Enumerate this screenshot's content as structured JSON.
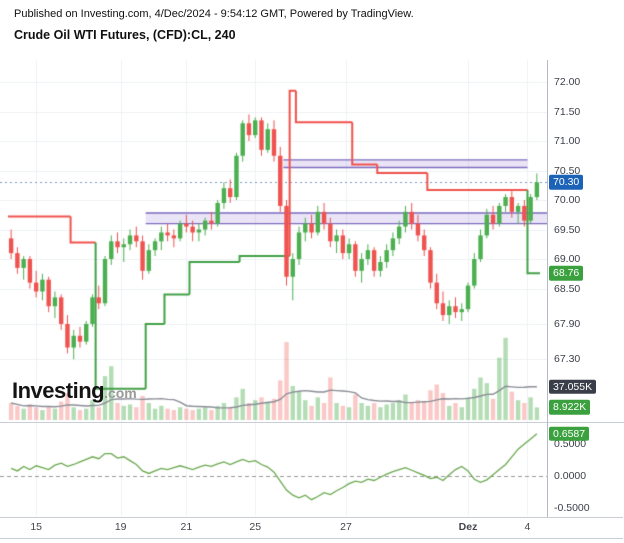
{
  "header": {
    "published_line": "Published on Investing.com, 4/Dec/2024 - 9:54:12 GMT, Powered by TradingView.",
    "title": "Crude Oil WTI Futures, (CFD):CL, 240"
  },
  "watermark": {
    "brand": "Investing",
    "suffix": ".com"
  },
  "colors": {
    "up": "#4caf50",
    "down": "#ef5350",
    "volUp": "rgba(76,175,80,0.42)",
    "volDown": "rgba(239,83,80,0.32)",
    "stUp": "#43a047",
    "stDown": "#f0524d",
    "osc": "#6aa84f",
    "zoneFill": "rgba(116,88,196,0.16)",
    "zoneBorder": "#7e6bbf",
    "priceLine": "#7d97c9",
    "grid": "#eef0f4",
    "volMA": "#8a8d96",
    "zeroLine": "#999999",
    "badgeLast": "#1c62b7",
    "badgeGreen": "#3ba13e",
    "badgeDark": "#3a3e48"
  },
  "chart_data": [
    {
      "type": "candlestick",
      "title": "Crude Oil WTI Futures, (CFD):CL, 240",
      "timeframe_minutes": 240,
      "ylim": [
        66.238,
        72.373
      ],
      "y_ticks": [
        72.0,
        71.5,
        71.0,
        70.5,
        70.0,
        69.5,
        69.0,
        68.5,
        67.9,
        67.3
      ],
      "x_labels": [
        {
          "label": "15",
          "index": 4
        },
        {
          "label": "19",
          "index": 17.5
        },
        {
          "label": "21",
          "index": 28
        },
        {
          "label": "25",
          "index": 39
        },
        {
          "label": "27",
          "index": 53.5
        },
        {
          "label": "Dez",
          "index": 73,
          "bold": true
        },
        {
          "label": "4",
          "index": 82.5
        }
      ],
      "last_price": 70.3,
      "badges": {
        "last_price": "70.30",
        "supertrend": "68.76"
      },
      "candles": [
        [
          69.35,
          69.5,
          69.0,
          69.1
        ],
        [
          69.1,
          69.2,
          68.75,
          68.85
        ],
        [
          68.85,
          69.05,
          68.65,
          69.0
        ],
        [
          69.0,
          69.05,
          68.5,
          68.6
        ],
        [
          68.6,
          68.8,
          68.35,
          68.45
        ],
        [
          68.45,
          68.75,
          68.3,
          68.65
        ],
        [
          68.65,
          68.7,
          68.1,
          68.2
        ],
        [
          68.2,
          68.45,
          68.0,
          68.35
        ],
        [
          68.35,
          68.4,
          67.8,
          67.9
        ],
        [
          67.9,
          68.05,
          67.4,
          67.5
        ],
        [
          67.5,
          67.8,
          67.3,
          67.7
        ],
        [
          67.7,
          67.85,
          67.5,
          67.6
        ],
        [
          67.6,
          67.95,
          67.55,
          67.9
        ],
        [
          67.9,
          68.4,
          67.85,
          68.35
        ],
        [
          68.35,
          68.55,
          68.15,
          68.25
        ],
        [
          68.25,
          69.05,
          68.2,
          69.0
        ],
        [
          69.0,
          69.4,
          68.9,
          69.3
        ],
        [
          69.3,
          69.45,
          69.1,
          69.2
        ],
        [
          69.2,
          69.35,
          68.95,
          69.25
        ],
        [
          69.25,
          69.5,
          69.15,
          69.4
        ],
        [
          69.4,
          69.55,
          69.2,
          69.3
        ],
        [
          69.3,
          69.4,
          68.65,
          68.8
        ],
        [
          68.8,
          69.25,
          68.75,
          69.15
        ],
        [
          69.15,
          69.35,
          69.05,
          69.3
        ],
        [
          69.3,
          69.55,
          69.15,
          69.45
        ],
        [
          69.45,
          69.6,
          69.3,
          69.4
        ],
        [
          69.4,
          69.5,
          69.2,
          69.35
        ],
        [
          69.35,
          69.65,
          69.3,
          69.6
        ],
        [
          69.6,
          69.75,
          69.45,
          69.55
        ],
        [
          69.55,
          69.65,
          69.3,
          69.45
        ],
        [
          69.45,
          69.6,
          69.3,
          69.5
        ],
        [
          69.5,
          69.7,
          69.4,
          69.65
        ],
        [
          69.65,
          69.8,
          69.5,
          69.6
        ],
        [
          69.6,
          70.0,
          69.55,
          69.95
        ],
        [
          69.95,
          70.3,
          69.85,
          70.2
        ],
        [
          70.2,
          70.35,
          69.95,
          70.05
        ],
        [
          70.05,
          70.8,
          70.0,
          70.75
        ],
        [
          70.75,
          71.35,
          70.65,
          71.3
        ],
        [
          71.3,
          71.45,
          71.0,
          71.1
        ],
        [
          71.1,
          71.4,
          71.05,
          71.35
        ],
        [
          71.35,
          71.4,
          70.75,
          70.85
        ],
        [
          70.85,
          71.3,
          70.8,
          71.2
        ],
        [
          71.2,
          71.35,
          70.65,
          70.75
        ],
        [
          70.75,
          70.9,
          69.8,
          69.9
        ],
        [
          69.9,
          70.0,
          68.55,
          68.7
        ],
        [
          68.7,
          69.1,
          68.3,
          69.0
        ],
        [
          69.0,
          69.55,
          68.9,
          69.45
        ],
        [
          69.45,
          69.7,
          69.3,
          69.6
        ],
        [
          69.6,
          69.75,
          69.35,
          69.45
        ],
        [
          69.45,
          69.9,
          69.4,
          69.8
        ],
        [
          69.8,
          69.95,
          69.5,
          69.6
        ],
        [
          69.6,
          69.7,
          69.2,
          69.3
        ],
        [
          69.3,
          69.5,
          69.1,
          69.4
        ],
        [
          69.4,
          69.5,
          69.0,
          69.1
        ],
        [
          69.1,
          69.35,
          69.0,
          69.25
        ],
        [
          69.25,
          69.3,
          68.7,
          68.8
        ],
        [
          68.8,
          69.1,
          68.6,
          69.0
        ],
        [
          69.0,
          69.25,
          68.9,
          69.15
        ],
        [
          69.15,
          69.2,
          68.7,
          68.8
        ],
        [
          68.8,
          69.05,
          68.7,
          68.95
        ],
        [
          68.95,
          69.25,
          68.85,
          69.15
        ],
        [
          69.15,
          69.45,
          69.05,
          69.35
        ],
        [
          69.35,
          69.65,
          69.25,
          69.55
        ],
        [
          69.55,
          69.9,
          69.45,
          69.8
        ],
        [
          69.8,
          69.95,
          69.5,
          69.6
        ],
        [
          69.6,
          69.75,
          69.3,
          69.4
        ],
        [
          69.4,
          69.5,
          69.05,
          69.15
        ],
        [
          69.15,
          69.2,
          68.5,
          68.6
        ],
        [
          68.6,
          68.75,
          68.15,
          68.25
        ],
        [
          68.25,
          68.45,
          67.95,
          68.05
        ],
        [
          68.05,
          68.3,
          67.9,
          68.2
        ],
        [
          68.2,
          68.35,
          68.0,
          68.1
        ],
        [
          68.1,
          68.25,
          67.95,
          68.15
        ],
        [
          68.15,
          68.6,
          68.1,
          68.55
        ],
        [
          68.55,
          69.1,
          68.5,
          69.0
        ],
        [
          69.0,
          69.5,
          68.95,
          69.4
        ],
        [
          69.4,
          69.85,
          69.35,
          69.75
        ],
        [
          69.75,
          69.9,
          69.5,
          69.6
        ],
        [
          69.6,
          69.95,
          69.55,
          69.9
        ],
        [
          69.9,
          70.1,
          69.8,
          70.05
        ],
        [
          70.05,
          70.15,
          69.7,
          69.8
        ],
        [
          69.8,
          69.95,
          69.6,
          69.9
        ],
        [
          69.9,
          70.0,
          69.55,
          69.65
        ],
        [
          69.65,
          70.1,
          69.6,
          70.05
        ],
        [
          70.05,
          70.45,
          70.0,
          70.3
        ]
      ],
      "supertrend": {
        "current_value": 68.76,
        "segments": [
          {
            "from": 0,
            "to": 9,
            "value": 69.72,
            "trend": "down"
          },
          {
            "from": 10,
            "to": 13,
            "value": 69.28,
            "trend": "down"
          },
          {
            "from": 14,
            "to": 21,
            "value": 66.8,
            "trend": "up"
          },
          {
            "from": 22,
            "to": 24,
            "value": 67.9,
            "trend": "up"
          },
          {
            "from": 25,
            "to": 28,
            "value": 68.4,
            "trend": "up"
          },
          {
            "from": 29,
            "to": 36,
            "value": 68.95,
            "trend": "up"
          },
          {
            "from": 37,
            "to": 44,
            "value": 69.05,
            "trend": "up"
          },
          {
            "from": 45,
            "to": 45,
            "value": 71.85,
            "trend": "down"
          },
          {
            "from": 46,
            "to": 54,
            "value": 71.32,
            "trend": "down"
          },
          {
            "from": 55,
            "to": 58,
            "value": 70.6,
            "trend": "down"
          },
          {
            "from": 59,
            "to": 66,
            "value": 70.46,
            "trend": "down"
          },
          {
            "from": 67,
            "to": 82,
            "value": 70.17,
            "trend": "down"
          },
          {
            "from": 83,
            "to": 84,
            "value": 68.76,
            "trend": "up"
          }
        ]
      },
      "zones": [
        {
          "from": 44,
          "to": 82,
          "top": 70.68,
          "bottom": 70.55
        },
        {
          "from": 22,
          "to": 999,
          "top": 69.78,
          "bottom": 69.6
        }
      ]
    },
    {
      "type": "bar",
      "name": "volume",
      "unit": "K",
      "ylim": [
        0,
        60
      ],
      "last_label": "8.922K",
      "ma_label": "37.055K",
      "values": [
        12,
        10,
        8,
        11,
        9,
        7,
        10,
        8,
        13,
        19,
        9,
        7,
        8,
        14,
        9,
        31,
        38,
        12,
        10,
        11,
        9,
        17,
        12,
        8,
        10,
        8,
        7,
        9,
        8,
        7,
        8,
        9,
        7,
        10,
        12,
        9,
        16,
        22,
        12,
        14,
        16,
        13,
        15,
        28,
        55,
        24,
        20,
        14,
        10,
        16,
        12,
        30,
        12,
        10,
        9,
        18,
        12,
        10,
        12,
        9,
        11,
        12,
        14,
        18,
        12,
        14,
        13,
        21,
        25,
        19,
        10,
        12,
        9,
        16,
        22,
        30,
        26,
        15,
        44,
        58,
        20,
        14,
        12,
        16,
        8.922
      ]
    },
    {
      "type": "line",
      "name": "oscillator",
      "ylim": [
        -0.625,
        0.844
      ],
      "y_ticks": [
        0.5,
        0.0,
        -0.5
      ],
      "last_label": "0.6587",
      "values": [
        0.12,
        0.08,
        0.15,
        0.1,
        0.16,
        0.13,
        0.1,
        0.17,
        0.2,
        0.15,
        0.18,
        0.22,
        0.26,
        0.3,
        0.27,
        0.35,
        0.35,
        0.28,
        0.3,
        0.24,
        0.18,
        0.08,
        0.04,
        0.08,
        0.12,
        0.1,
        0.13,
        0.16,
        0.13,
        0.1,
        0.14,
        0.17,
        0.15,
        0.19,
        0.22,
        0.18,
        0.22,
        0.26,
        0.22,
        0.24,
        0.18,
        0.14,
        0.06,
        -0.08,
        -0.22,
        -0.3,
        -0.34,
        -0.3,
        -0.37,
        -0.32,
        -0.26,
        -0.29,
        -0.23,
        -0.18,
        -0.12,
        -0.08,
        -0.1,
        -0.05,
        -0.07,
        -0.02,
        0.03,
        0.07,
        0.1,
        0.13,
        0.09,
        0.05,
        0.01,
        -0.04,
        -0.02,
        -0.07,
        0.02,
        0.1,
        0.15,
        0.08,
        -0.05,
        -0.1,
        -0.06,
        0.02,
        0.1,
        0.18,
        0.3,
        0.42,
        0.5,
        0.58,
        0.6587
      ]
    }
  ]
}
